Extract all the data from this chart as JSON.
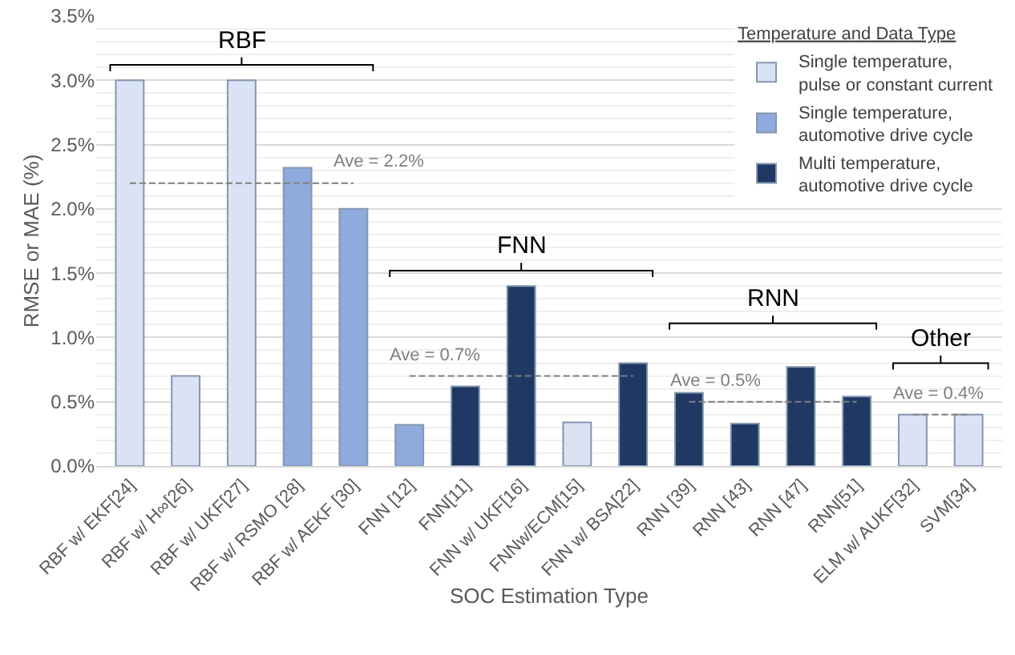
{
  "chart_data": {
    "type": "bar",
    "xlabel": "SOC Estimation Type",
    "ylabel": "RMSE or MAE (%)",
    "legend_title": "Temperature and Data Type",
    "categories": [
      "RBF w/ EKF[24]",
      "RBF w/ H∞[26]",
      "RBF w/ UKF[27]",
      "RBF w/ RSMO [28]",
      "RBF w/ AEKF [30]",
      "FNN [12]",
      "FNN[11]",
      "FNN w/ UKF[16]",
      "FNNw/ECM[15]",
      "FNN w/ BSA[22]",
      "RNN [39]",
      "RNN [43]",
      "RNN [47]",
      "RNN[51]",
      "ELM w/ AUKF[32]",
      "SVM[34]"
    ],
    "series": [
      {
        "name": "Single temperature,\npulse or constant current",
        "color": "#dae3f3",
        "values": [
          3.0,
          0.7,
          3.0,
          null,
          null,
          null,
          null,
          null,
          0.34,
          null,
          null,
          null,
          null,
          null,
          0.4,
          0.4
        ]
      },
      {
        "name": "Single temperature,\nautomotive drive cycle",
        "color": "#8faadc",
        "values": [
          null,
          null,
          null,
          2.32,
          2.0,
          0.32,
          null,
          null,
          null,
          null,
          null,
          null,
          null,
          null,
          null,
          null
        ]
      },
      {
        "name": "Multi temperature,\nautomotive drive cycle",
        "color": "#203864",
        "values": [
          null,
          null,
          null,
          null,
          null,
          null,
          0.62,
          1.4,
          null,
          0.8,
          0.57,
          0.33,
          0.77,
          0.54,
          null,
          null
        ]
      },
      {
        "type": "line",
        "color": "#7f7f7f",
        "line_style": "dashed",
        "values": [
          2.2,
          2.2,
          2.2,
          2.2,
          2.2,
          null,
          null,
          null,
          null,
          null,
          null,
          null,
          null,
          null,
          null,
          null
        ]
      },
      {
        "type": "line",
        "color": "#7f7f7f",
        "line_style": "dashed",
        "values": [
          null,
          null,
          null,
          null,
          null,
          0.7,
          0.7,
          0.7,
          0.7,
          0.7,
          null,
          null,
          null,
          null,
          null,
          null
        ]
      },
      {
        "type": "line",
        "color": "#7f7f7f",
        "line_style": "dashed",
        "values": [
          null,
          null,
          null,
          null,
          null,
          null,
          null,
          null,
          null,
          null,
          0.5,
          0.5,
          0.5,
          0.5,
          null,
          null
        ]
      },
      {
        "type": "line",
        "color": "#7f7f7f",
        "line_style": "dashed",
        "values": [
          null,
          null,
          null,
          null,
          null,
          null,
          null,
          null,
          null,
          null,
          null,
          null,
          null,
          null,
          0.4,
          0.4
        ]
      }
    ],
    "annotations": [
      "RBF",
      "FNN",
      "RNN",
      "Other",
      {
        "text": "Ave = 2.2%",
        "x": "RBF w/ AEKF [30]",
        "y": 2.2
      },
      {
        "text": "Ave = 0.7%",
        "x": "FNN [12]",
        "y": 0.7
      },
      {
        "text": "Ave = 0.5%",
        "x": "RNN [39]",
        "y": 0.5
      },
      {
        "text": "Ave = 0.4%",
        "x": "ELM w/ AUKF[32]",
        "y": 0.4
      }
    ],
    "ylim": [
      0,
      3.5
    ],
    "yticks": [
      {
        "value": 0,
        "label": "0.0%"
      },
      {
        "value": 0.5,
        "label": "0.5%"
      },
      {
        "value": 1,
        "label": "1.0%"
      },
      {
        "value": 1.5,
        "label": "1.5%"
      },
      {
        "value": 2,
        "label": "2.0%"
      },
      {
        "value": 2.5,
        "label": "2.5%"
      },
      {
        "value": 3,
        "label": "3.0%"
      },
      {
        "value": 3.5,
        "label": "3.5%"
      }
    ],
    "grid": "y",
    "legend": "top right"
  }
}
